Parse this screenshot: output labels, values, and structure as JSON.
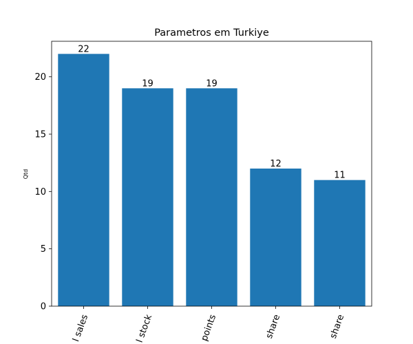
{
  "chart_data": {
    "type": "bar",
    "title": "Parametros em Turkiye",
    "xlabel": "",
    "ylabel": "Qtd",
    "categories": [
      "l sales",
      "l stock",
      "points",
      "share",
      "share"
    ],
    "values": [
      22,
      19,
      19,
      12,
      11
    ],
    "ylim": [
      0,
      23.1
    ],
    "yticks": [
      0,
      5,
      10,
      15,
      20
    ],
    "bar_color": "#1f77b4",
    "grid": false,
    "legend": "none"
  }
}
